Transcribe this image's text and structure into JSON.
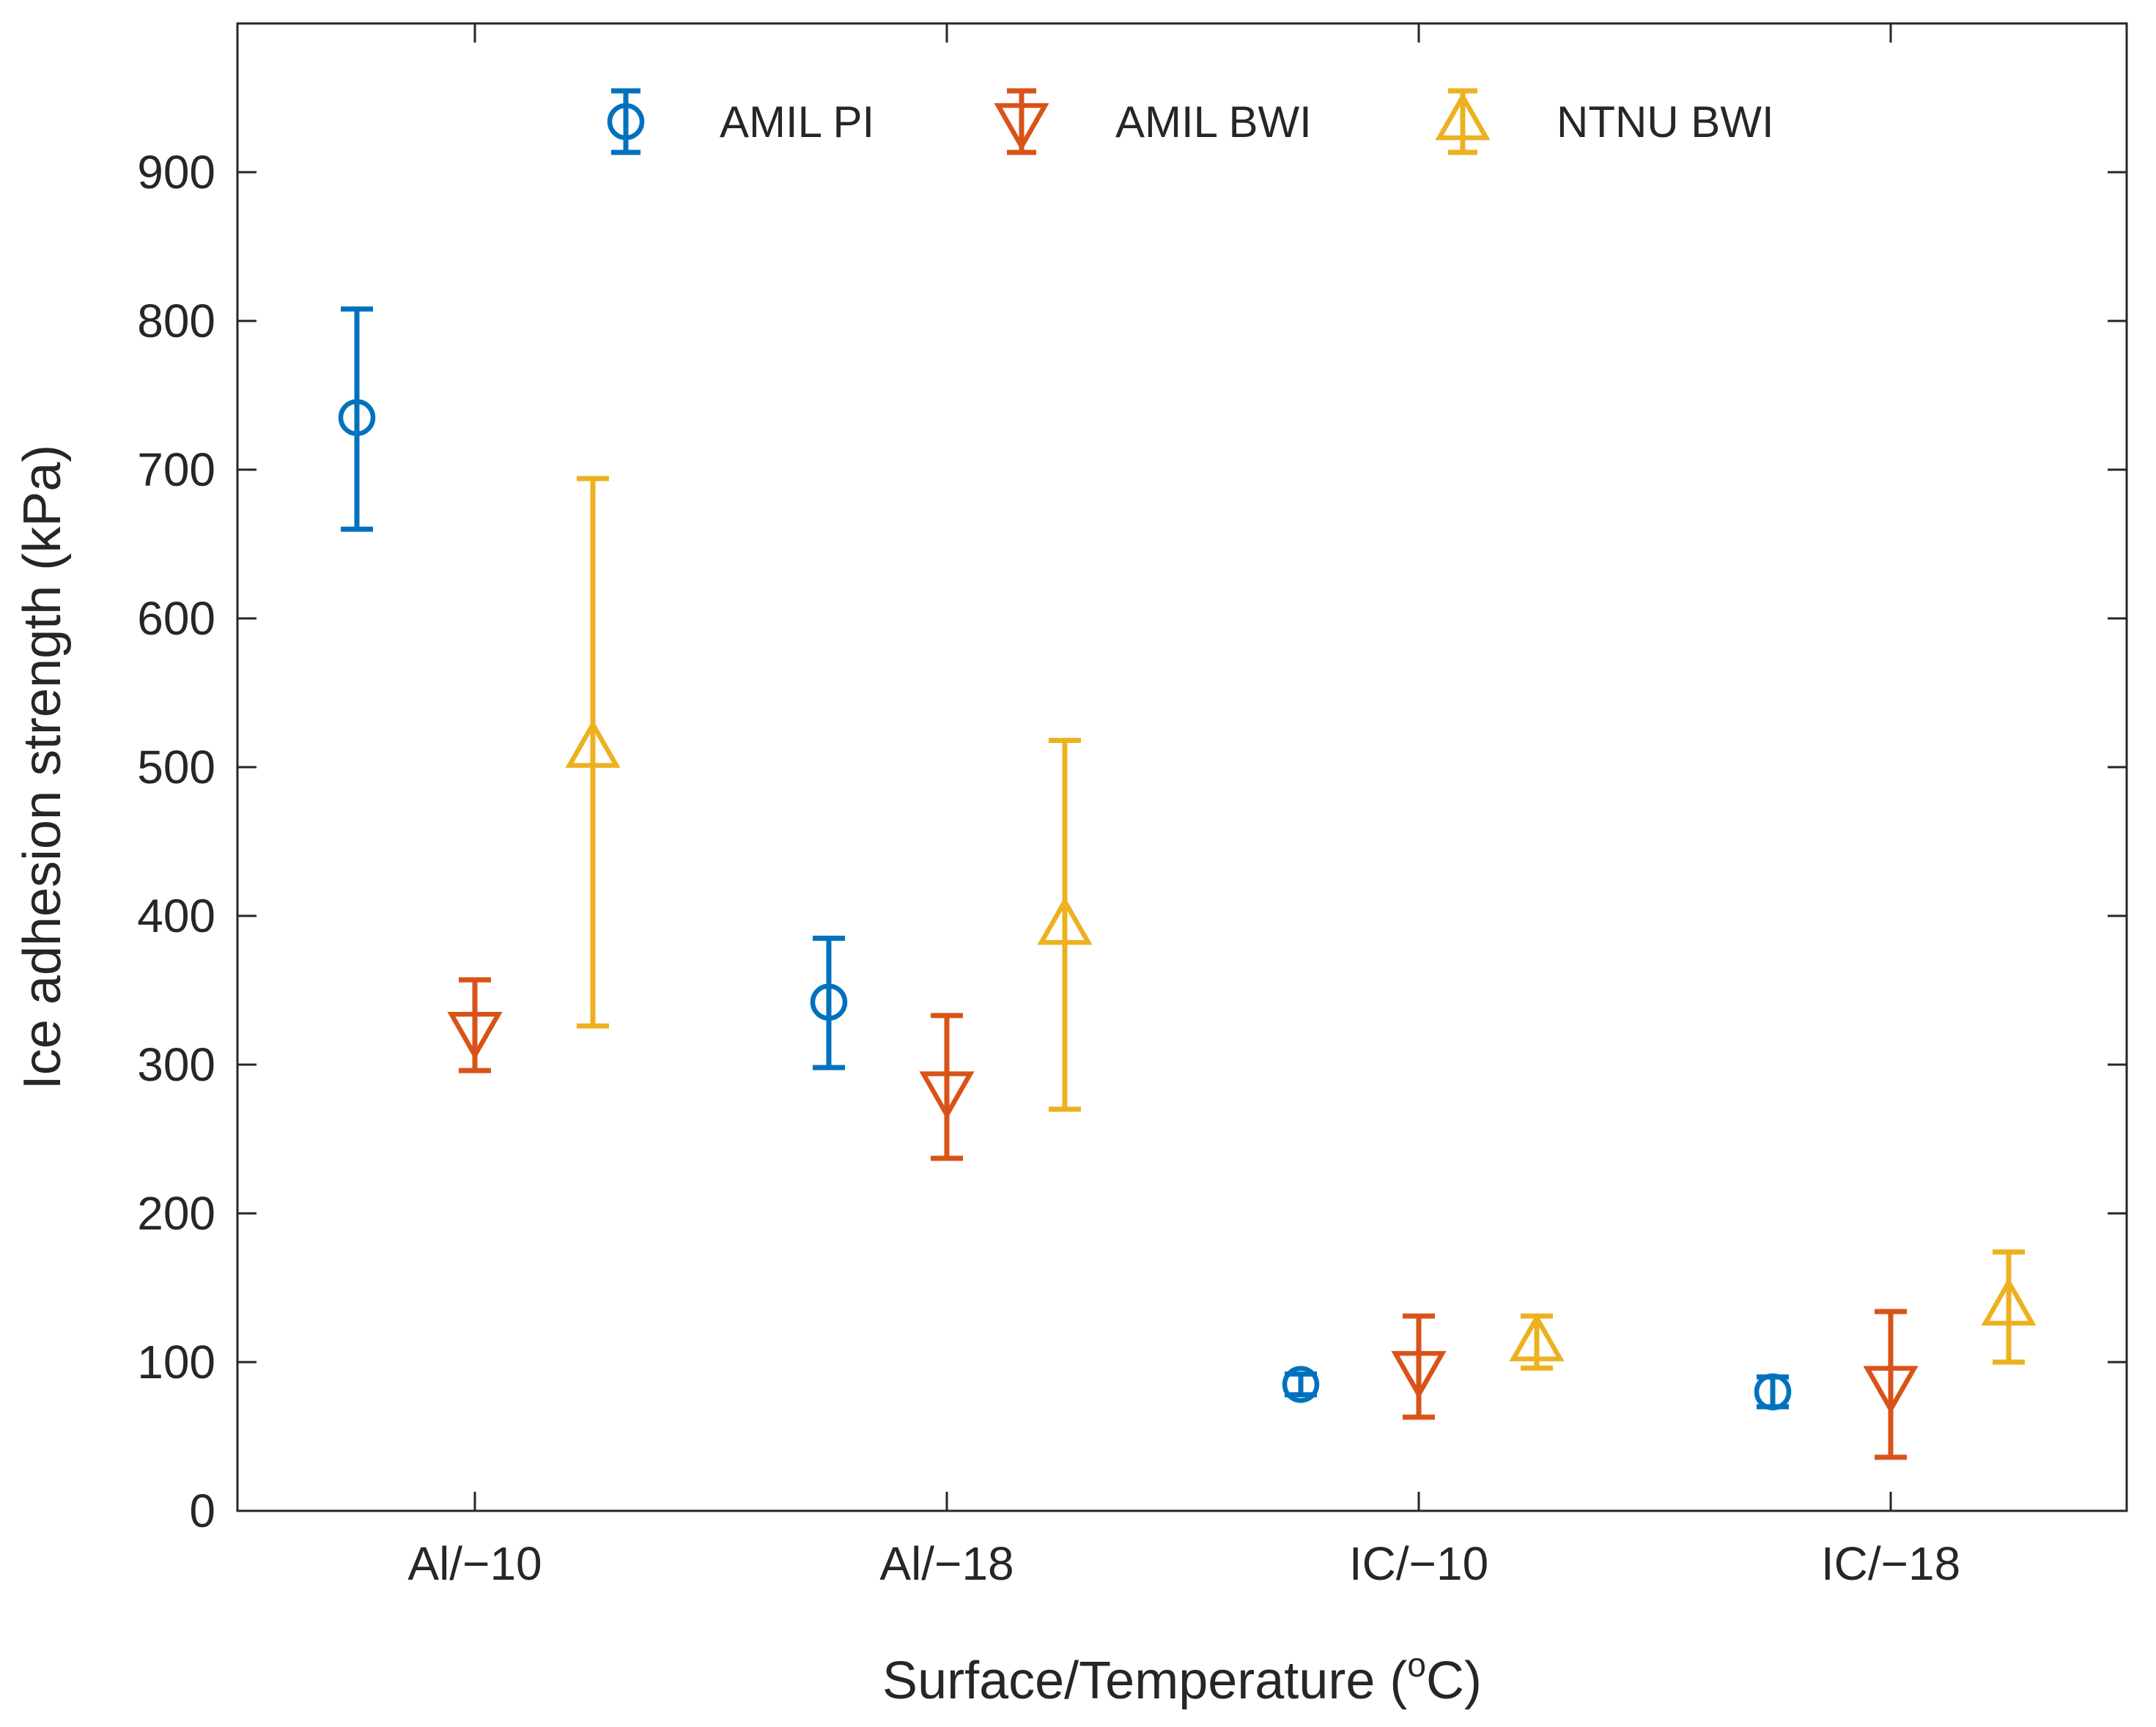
{
  "chart_data": {
    "type": "scatter",
    "subtype": "errorbar",
    "title": "",
    "xlabel": "Surface/Temperature (",
    "xlabel_sup": "o",
    "xlabel_end": "C)",
    "ylabel": "Ice adhesion strength (kPa)",
    "categories": [
      "Al/−10",
      "Al/−18",
      "IC/−10",
      "IC/−18"
    ],
    "ylim": [
      0,
      1000
    ],
    "yticks": [
      0,
      100,
      200,
      300,
      400,
      500,
      600,
      700,
      800,
      900
    ],
    "grid": false,
    "legend_position": "top",
    "series": [
      {
        "name": "AMIL PI",
        "marker": "circle",
        "color": "#0072BD",
        "offset": -0.25,
        "values": [
          735,
          342,
          85,
          80
        ],
        "lower": [
          660,
          298,
          78,
          70
        ],
        "upper": [
          808,
          385,
          92,
          90
        ]
      },
      {
        "name": "AMIL BWI",
        "marker": "triangle-down",
        "color": "#D95319",
        "offset": 0,
        "values": [
          323,
          283,
          95,
          85
        ],
        "lower": [
          296,
          237,
          63,
          36
        ],
        "upper": [
          357,
          333,
          131,
          134
        ]
      },
      {
        "name": "NTNU BWI",
        "marker": "triangle-up",
        "color": "#EDB120",
        "offset": 0.25,
        "values": [
          512,
          393,
          113,
          137
        ],
        "lower": [
          326,
          270,
          96,
          100
        ],
        "upper": [
          694,
          518,
          131,
          174
        ]
      }
    ]
  }
}
